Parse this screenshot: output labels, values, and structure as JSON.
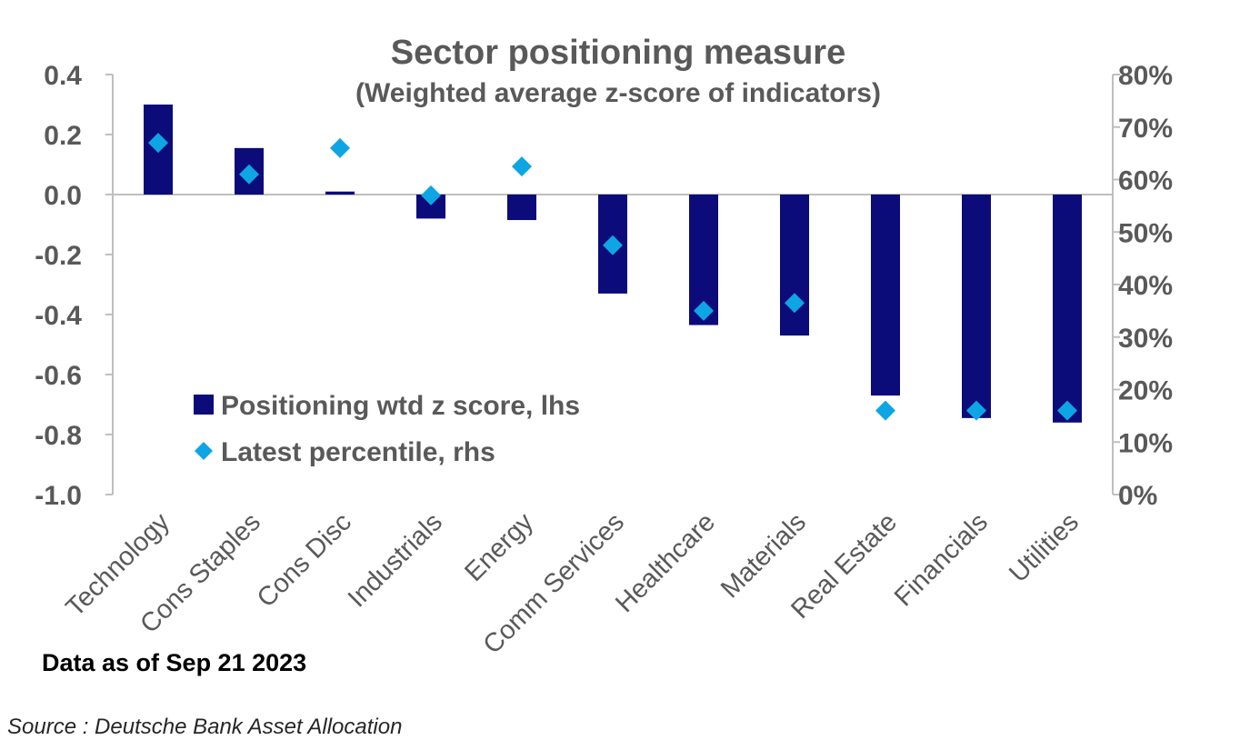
{
  "chart_data": {
    "type": "bar",
    "title": "Sector positioning measure",
    "subtitle": "(Weighted average z-score of indicators)",
    "categories": [
      "Technology",
      "Cons Staples",
      "Cons Disc",
      "Industrials",
      "Energy",
      "Comm Services",
      "Healthcare",
      "Materials",
      "Real Estate",
      "Financials",
      "Utilities"
    ],
    "series": [
      {
        "name": "Positioning wtd z score, lhs",
        "type": "bar",
        "axis": "left",
        "color": "#0B0B7A",
        "values": [
          0.3,
          0.155,
          0.01,
          -0.08,
          -0.085,
          -0.33,
          -0.435,
          -0.47,
          -0.67,
          -0.745,
          -0.76
        ]
      },
      {
        "name": "Latest percentile, rhs",
        "type": "scatter",
        "marker": "diamond",
        "axis": "right",
        "color": "#0EA5E4",
        "values": [
          0.67,
          0.61,
          0.66,
          0.57,
          0.625,
          0.475,
          0.35,
          0.365,
          0.16,
          0.16,
          0.16
        ]
      }
    ],
    "left_axis": {
      "ylim": [
        -1.0,
        0.4
      ],
      "ticks": [
        0.4,
        0.2,
        0.0,
        -0.2,
        -0.4,
        -0.6,
        -0.8,
        -1.0
      ],
      "tick_labels": [
        "0.4",
        "0.2",
        "0.0",
        "-0.2",
        "-0.4",
        "-0.6",
        "-0.8",
        "-1.0"
      ]
    },
    "right_axis": {
      "ylim": [
        0,
        0.8
      ],
      "ticks": [
        0.8,
        0.7,
        0.6,
        0.5,
        0.4,
        0.3,
        0.2,
        0.1,
        0.0
      ],
      "tick_labels": [
        "80%",
        "70%",
        "60%",
        "50%",
        "40%",
        "30%",
        "20%",
        "10%",
        "0%"
      ]
    },
    "legend_position": "lower-left",
    "grid": false
  },
  "footnote": "Data as of Sep 21 2023",
  "source": "Source : Deutsche Bank Asset Allocation"
}
